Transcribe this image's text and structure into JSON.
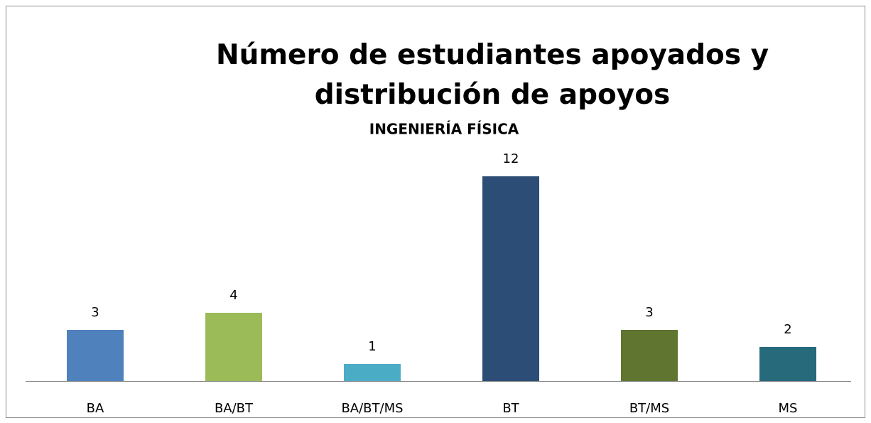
{
  "chart_data": {
    "type": "bar",
    "title": "Número de estudiantes apoyados y distribución de apoyos",
    "subtitle": "INGENIERÍA FÍSICA",
    "categories": [
      "BA",
      "BA/BT",
      "BA/BT/MS",
      "BT",
      "BT/MS",
      "MS"
    ],
    "values": [
      3,
      4,
      1,
      12,
      3,
      2
    ],
    "colors": [
      "#4f81bd",
      "#9bbb59",
      "#4bacc6",
      "#2c4d75",
      "#5f7530",
      "#276a7c"
    ]
  }
}
